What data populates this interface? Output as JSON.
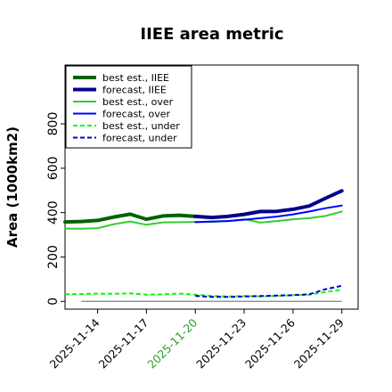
{
  "chart_data": {
    "type": "line",
    "title": "IIEE area metric",
    "xlabel": "",
    "ylabel": "Area (1000km2)",
    "xlim": [
      "2025-11-12",
      "2025-11-30"
    ],
    "ylim": [
      -35,
      1065
    ],
    "yticks": [
      0,
      200,
      400,
      600,
      800
    ],
    "xticks": [
      {
        "label": "2025-11-14",
        "date": "2025-11-14",
        "color": "#000000"
      },
      {
        "label": "2025-11-17",
        "date": "2025-11-17",
        "color": "#000000"
      },
      {
        "label": "2025-11-20",
        "date": "2025-11-20",
        "color": "#2ca02c"
      },
      {
        "label": "2025-11-23",
        "date": "2025-11-23",
        "color": "#000000"
      },
      {
        "label": "2025-11-26",
        "date": "2025-11-26",
        "color": "#000000"
      },
      {
        "label": "2025-11-29",
        "date": "2025-11-29",
        "color": "#000000"
      }
    ],
    "legend_position": "top-left",
    "zero_line": {
      "y": 0,
      "color": "#808080"
    },
    "series": [
      {
        "name": "best est., IIEE",
        "color": "#006400",
        "style": "solid",
        "width": 4,
        "x": [
          "2025-11-12",
          "2025-11-13",
          "2025-11-14",
          "2025-11-15",
          "2025-11-16",
          "2025-11-17",
          "2025-11-18",
          "2025-11-19",
          "2025-11-20"
        ],
        "y": [
          358,
          360,
          365,
          380,
          393,
          370,
          385,
          388,
          383
        ]
      },
      {
        "name": "forecast, IIEE",
        "color": "#00008b",
        "style": "solid",
        "width": 4,
        "x": [
          "2025-11-20",
          "2025-11-21",
          "2025-11-22",
          "2025-11-23",
          "2025-11-24",
          "2025-11-25",
          "2025-11-26",
          "2025-11-27",
          "2025-11-28",
          "2025-11-29"
        ],
        "y": [
          383,
          378,
          383,
          392,
          405,
          406,
          415,
          430,
          465,
          498
        ]
      },
      {
        "name": "best est., over",
        "color": "#32cd32",
        "style": "solid",
        "width": 2,
        "x": [
          "2025-11-12",
          "2025-11-13",
          "2025-11-14",
          "2025-11-15",
          "2025-11-16",
          "2025-11-17",
          "2025-11-18",
          "2025-11-19",
          "2025-11-20",
          "2025-11-21",
          "2025-11-22",
          "2025-11-23",
          "2025-11-24",
          "2025-11-25",
          "2025-11-26",
          "2025-11-27",
          "2025-11-28",
          "2025-11-29"
        ],
        "y": [
          328,
          327,
          330,
          348,
          360,
          345,
          356,
          357,
          358,
          358,
          362,
          370,
          355,
          362,
          370,
          375,
          385,
          405
        ]
      },
      {
        "name": "forecast, over",
        "color": "#0000ff",
        "style": "solid",
        "width": 2,
        "x": [
          "2025-11-20",
          "2025-11-21",
          "2025-11-22",
          "2025-11-23",
          "2025-11-24",
          "2025-11-25",
          "2025-11-26",
          "2025-11-27",
          "2025-11-28",
          "2025-11-29"
        ],
        "y": [
          357,
          360,
          362,
          368,
          375,
          382,
          392,
          405,
          420,
          432
        ]
      },
      {
        "name": "best est., under",
        "color": "#00ff00",
        "style": "dashed",
        "width": 2,
        "x": [
          "2025-11-12",
          "2025-11-13",
          "2025-11-14",
          "2025-11-15",
          "2025-11-16",
          "2025-11-17",
          "2025-11-18",
          "2025-11-19",
          "2025-11-20",
          "2025-11-21",
          "2025-11-22",
          "2025-11-23",
          "2025-11-24",
          "2025-11-25",
          "2025-11-26",
          "2025-11-27",
          "2025-11-28",
          "2025-11-29"
        ],
        "y": [
          32,
          33,
          35,
          34,
          36,
          30,
          32,
          35,
          30,
          25,
          22,
          24,
          22,
          25,
          28,
          30,
          42,
          52
        ]
      },
      {
        "name": "forecast, under",
        "color": "#0000cd",
        "style": "dashed",
        "width": 2,
        "x": [
          "2025-11-20",
          "2025-11-21",
          "2025-11-22",
          "2025-11-23",
          "2025-11-24",
          "2025-11-25",
          "2025-11-26",
          "2025-11-27",
          "2025-11-28",
          "2025-11-29"
        ],
        "y": [
          25,
          20,
          20,
          22,
          24,
          26,
          28,
          32,
          55,
          70
        ]
      }
    ]
  }
}
